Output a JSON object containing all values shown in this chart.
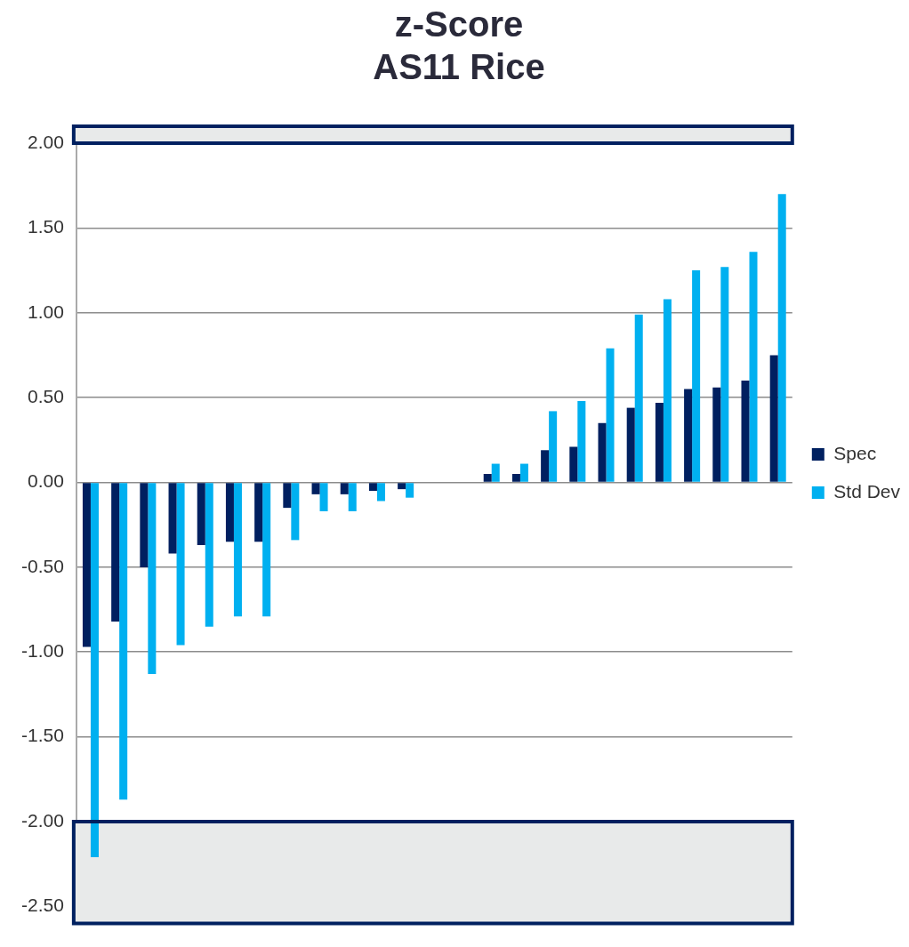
{
  "chart_data": {
    "type": "bar",
    "title": "z-Score",
    "subtitle": "AS11 Rice",
    "categories": [
      null,
      null,
      null,
      null,
      null,
      null,
      null,
      null,
      null,
      null,
      null,
      null,
      null,
      null,
      null,
      null,
      null,
      null,
      null,
      null,
      null,
      null,
      null,
      null,
      null
    ],
    "series": [
      {
        "name": "Spec",
        "color": "#002060",
        "values": [
          -0.97,
          -0.82,
          -0.5,
          -0.42,
          -0.37,
          -0.35,
          -0.35,
          -0.15,
          -0.07,
          -0.07,
          -0.05,
          -0.04,
          0,
          0,
          0.05,
          0.05,
          0.19,
          0.21,
          0.35,
          0.44,
          0.47,
          0.55,
          0.56,
          0.6,
          0.75
        ]
      },
      {
        "name": "Std Dev",
        "color": "#00b0f0",
        "values": [
          -2.21,
          -1.87,
          -1.13,
          -0.96,
          -0.85,
          -0.79,
          -0.79,
          -0.34,
          -0.17,
          -0.17,
          -0.11,
          -0.09,
          0,
          0,
          0.11,
          0.11,
          0.42,
          0.48,
          0.79,
          0.99,
          1.08,
          1.25,
          1.27,
          1.36,
          1.7
        ]
      }
    ],
    "ylim": [
      -2.6,
      2.1
    ],
    "yticks": [
      {
        "value": -2.5,
        "label": "-2.50"
      },
      {
        "value": -2,
        "label": "-2.00"
      },
      {
        "value": -1.5,
        "label": "-1.50"
      },
      {
        "value": -1,
        "label": "-1.00"
      },
      {
        "value": -0.5,
        "label": "-0.50"
      },
      {
        "value": 0,
        "label": "0.00"
      },
      {
        "value": 0.5,
        "label": "0.50"
      },
      {
        "value": 1,
        "label": "1.00"
      },
      {
        "value": 1.5,
        "label": "1.50"
      },
      {
        "value": 2,
        "label": "2.00"
      }
    ],
    "bands": [
      {
        "axis": "y",
        "from": 2.0,
        "to": 2.1,
        "color": "#e8eaea"
      },
      {
        "axis": "y",
        "from": -2.6,
        "to": -2.0,
        "color": "#e8eaea"
      }
    ],
    "grid": "y",
    "legend": "right",
    "tick_labels": "y"
  }
}
